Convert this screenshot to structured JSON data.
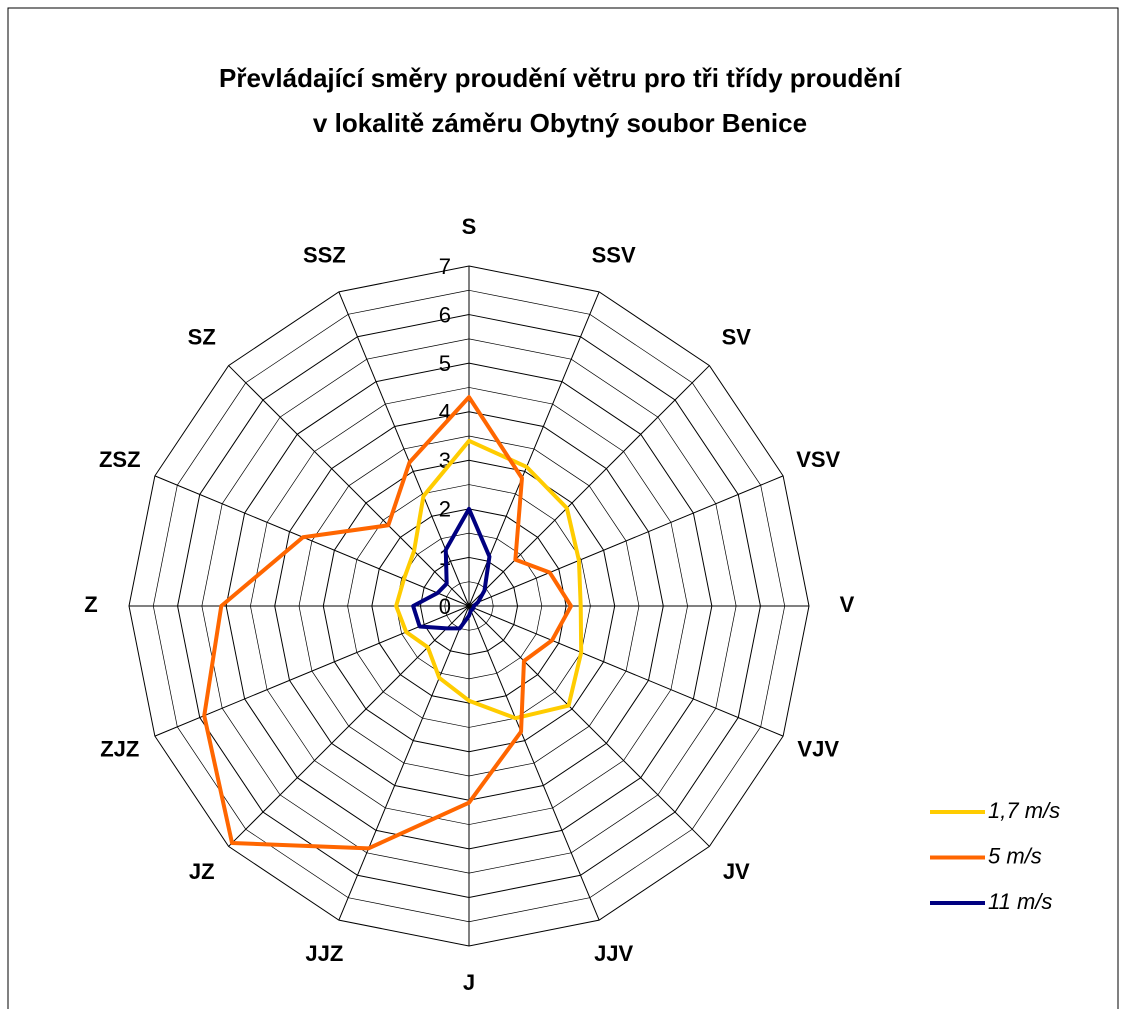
{
  "chart_data": {
    "type": "radar",
    "title": [
      "Převládající směry proudění větru pro tři třídy proudění",
      "v lokalitě záměru Obytný soubor Benice"
    ],
    "categories": [
      "S",
      "SSV",
      "SV",
      "VSV",
      "V",
      "VJV",
      "JV",
      "JJV",
      "J",
      "JJZ",
      "JZ",
      "ZJZ",
      "Z",
      "ZSZ",
      "SZ",
      "SSZ"
    ],
    "series": [
      {
        "name": "1,7 m/s",
        "color": "#ffcc00",
        "values": [
          3.4,
          3.1,
          2.85,
          2.45,
          2.3,
          2.5,
          2.9,
          2.5,
          1.95,
          1.6,
          1.2,
          1.4,
          1.5,
          1.45,
          1.6,
          2.45
        ]
      },
      {
        "name": "5 m/s",
        "color": "#ff6600",
        "values": [
          4.3,
          2.85,
          1.35,
          1.8,
          2.1,
          1.85,
          1.6,
          2.8,
          4.05,
          5.4,
          6.9,
          5.9,
          5.1,
          3.7,
          2.35,
          3.2
        ]
      },
      {
        "name": "11 m/s",
        "color": "#000080",
        "values": [
          2.0,
          1.1,
          0.45,
          0.2,
          0.1,
          0.1,
          0.1,
          0.1,
          0.2,
          0.5,
          0.65,
          1.1,
          1.15,
          0.7,
          0.65,
          1.25
        ]
      }
    ],
    "ylim": [
      0,
      7
    ],
    "yticks": [
      0,
      1,
      2,
      3,
      4,
      5,
      6,
      7
    ],
    "grid": true,
    "legend": "right"
  }
}
